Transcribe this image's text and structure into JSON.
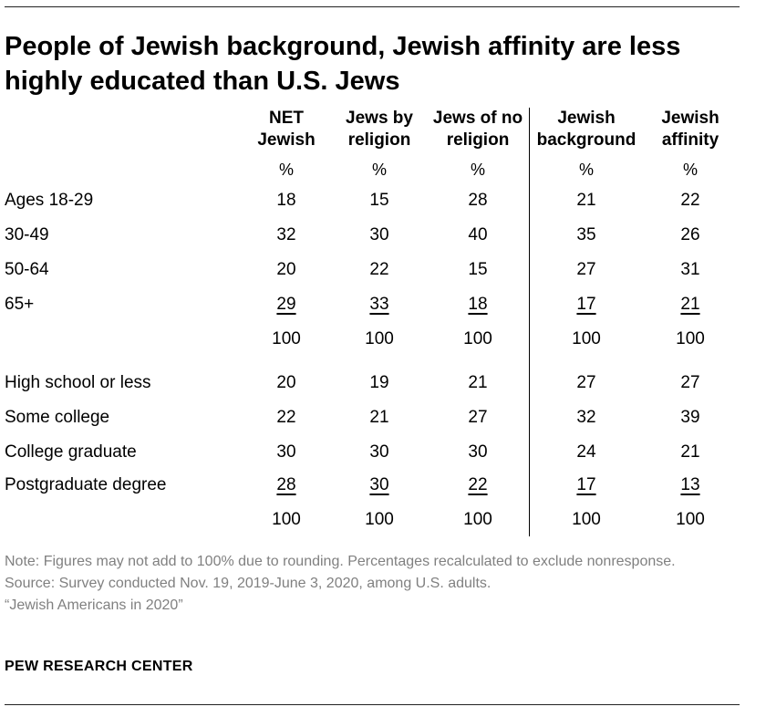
{
  "title": "People of Jewish background, Jewish affinity are less highly educated than U.S. Jews",
  "columns": [
    {
      "label1": "NET",
      "label2": "Jewish"
    },
    {
      "label1": "Jews by",
      "label2": "religion"
    },
    {
      "label1": "Jews of no",
      "label2": "religion"
    },
    {
      "label1": "Jewish",
      "label2": "background"
    },
    {
      "label1": "Jewish",
      "label2": "affinity"
    }
  ],
  "pct_symbol": "%",
  "age_rows": [
    {
      "label": "Ages 18-29",
      "values": [
        "18",
        "15",
        "28",
        "21",
        "22"
      ]
    },
    {
      "label": "30-49",
      "values": [
        "32",
        "30",
        "40",
        "35",
        "26"
      ]
    },
    {
      "label": "50-64",
      "values": [
        "20",
        "22",
        "15",
        "27",
        "31"
      ]
    },
    {
      "label": "65+",
      "values": [
        "29",
        "33",
        "18",
        "17",
        "21"
      ]
    }
  ],
  "age_total": [
    "100",
    "100",
    "100",
    "100",
    "100"
  ],
  "edu_rows": [
    {
      "label": "High school or less",
      "values": [
        "20",
        "19",
        "21",
        "27",
        "27"
      ]
    },
    {
      "label": "Some college",
      "values": [
        "22",
        "21",
        "27",
        "32",
        "39"
      ]
    },
    {
      "label": "College graduate",
      "values": [
        "30",
        "30",
        "30",
        "24",
        "21"
      ]
    },
    {
      "label": "Postgraduate degree",
      "values": [
        "28",
        "30",
        "22",
        "17",
        "13"
      ]
    }
  ],
  "edu_total": [
    "100",
    "100",
    "100",
    "100",
    "100"
  ],
  "note": "Note: Figures may not add to 100% due to rounding. Percentages recalculated to exclude nonresponse.",
  "source": "Source: Survey conducted Nov. 19, 2019-June 3, 2020, among U.S. adults.",
  "report": "“Jewish Americans in 2020”",
  "brand": "PEW RESEARCH CENTER"
}
